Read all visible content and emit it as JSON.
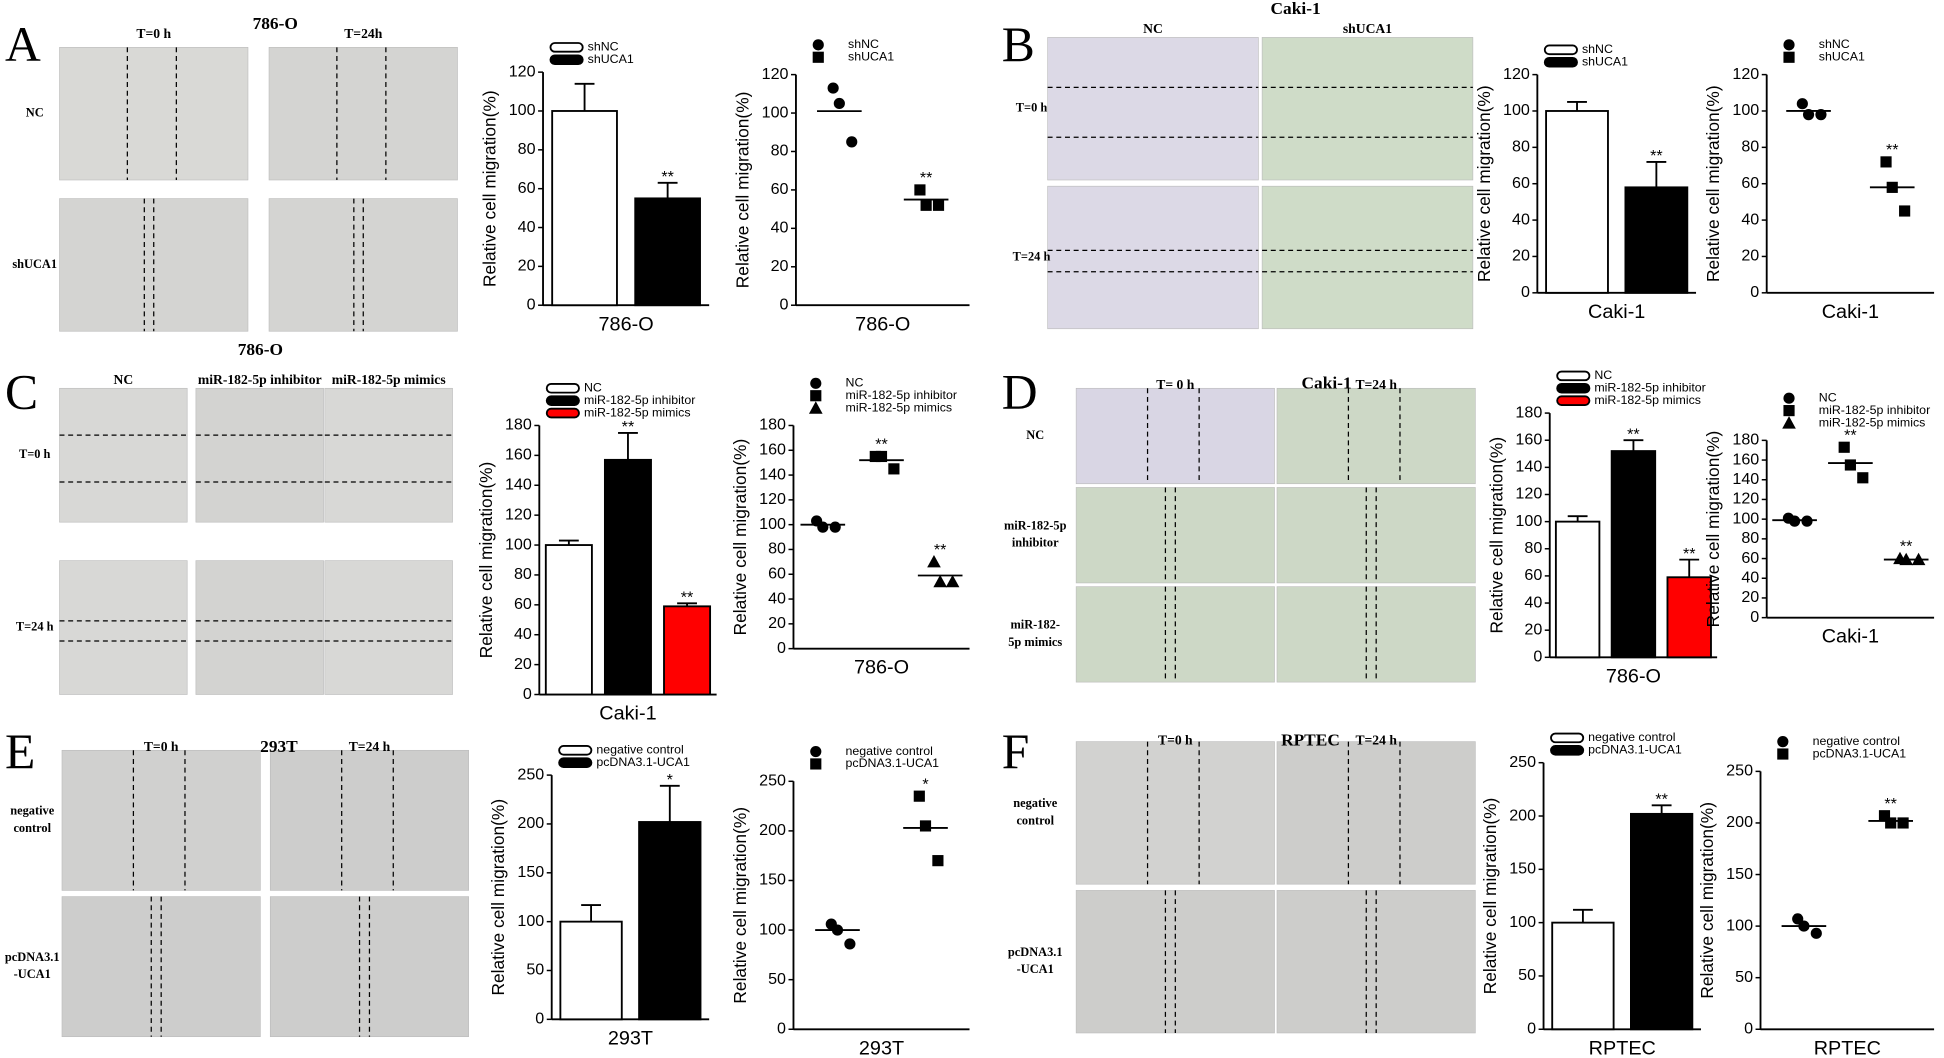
{
  "panels": [
    {
      "letter": "A",
      "title": "786-O",
      "column_labels": [
        "T=0 h",
        "T=24h"
      ],
      "row_labels": [
        [
          "NC"
        ],
        [
          "shUCA1"
        ]
      ]
    },
    {
      "letter": "B",
      "title": "Caki-1",
      "column_labels": [
        "NC",
        "shUCA1"
      ],
      "row_labels": [
        [
          "T=0 h"
        ],
        [
          "T=24 h"
        ]
      ]
    },
    {
      "letter": "C",
      "title": "786-O",
      "column_labels": [
        "NC",
        "miR-182-5p inhibitor",
        "miR-182-5p mimics"
      ],
      "row_labels": [
        [
          "T=0 h"
        ],
        [
          "T=24 h"
        ]
      ]
    },
    {
      "letter": "D",
      "title": "Caki-1",
      "column_labels": [
        "T= 0 h",
        "T=24 h"
      ],
      "row_labels": [
        [
          "NC"
        ],
        [
          "miR-182-5p",
          "inhibitor"
        ],
        [
          "miR-182-",
          "5p mimics"
        ]
      ]
    },
    {
      "letter": "E",
      "title": "293T",
      "column_labels": [
        "T=0 h",
        "T=24 h"
      ],
      "row_labels": [
        [
          "negative",
          "control"
        ],
        [
          "pcDNA3.1",
          "-UCA1"
        ]
      ]
    },
    {
      "letter": "F",
      "title": "RPTEC",
      "column_labels": [
        "T=0 h",
        "T=24 h"
      ],
      "row_labels": [
        [
          "negative",
          "control"
        ],
        [
          "pcDNA3.1",
          "-UCA1"
        ]
      ]
    }
  ],
  "chart_data": [
    {
      "type": "bar",
      "ylabel": "Relative cell migration(%)",
      "xlabel": "786-O",
      "ylim": [
        0,
        120
      ],
      "yticks": [
        0,
        20,
        40,
        60,
        80,
        100,
        120
      ],
      "series": [
        {
          "name": "shNC",
          "color": "#ffffff",
          "values": [
            100
          ],
          "errors": [
            14
          ]
        },
        {
          "name": "shUCA1",
          "color": "#000000",
          "values": [
            55
          ],
          "errors": [
            8
          ],
          "annotation": "**"
        }
      ]
    },
    {
      "type": "dot",
      "ylabel": "Relative cell migration(%)",
      "xlabel": "786-O",
      "ylim": [
        0,
        120
      ],
      "yticks": [
        0,
        20,
        40,
        60,
        80,
        100,
        120
      ],
      "series": [
        {
          "name": "shNC",
          "marker": "circle",
          "values": [
            113,
            105,
            85
          ],
          "mean": 101
        },
        {
          "name": "shUCA1",
          "marker": "square",
          "values": [
            60,
            52,
            52
          ],
          "mean": 55,
          "annotation": "**"
        }
      ]
    },
    {
      "type": "bar",
      "ylabel": "Relative cell migration(%)",
      "xlabel": "Caki-1",
      "ylim": [
        0,
        120
      ],
      "yticks": [
        0,
        20,
        40,
        60,
        80,
        100,
        120
      ],
      "series": [
        {
          "name": "shNC",
          "color": "#ffffff",
          "values": [
            100
          ],
          "errors": [
            5
          ]
        },
        {
          "name": "shUCA1",
          "color": "#000000",
          "values": [
            58
          ],
          "errors": [
            14
          ],
          "annotation": "**"
        }
      ]
    },
    {
      "type": "dot",
      "ylabel": "Relative cell migration(%)",
      "xlabel": "Caki-1",
      "ylim": [
        0,
        120
      ],
      "yticks": [
        0,
        20,
        40,
        60,
        80,
        100,
        120
      ],
      "series": [
        {
          "name": "shNC",
          "marker": "circle",
          "values": [
            104,
            98,
            98
          ],
          "mean": 100
        },
        {
          "name": "shUCA1",
          "marker": "square",
          "values": [
            72,
            58,
            45
          ],
          "mean": 58,
          "annotation": "**"
        }
      ]
    },
    {
      "type": "bar",
      "ylabel": "Relative cell migration(%)",
      "xlabel": "Caki-1",
      "ylim": [
        0,
        180
      ],
      "yticks": [
        0,
        20,
        40,
        60,
        80,
        100,
        120,
        140,
        160,
        180
      ],
      "series": [
        {
          "name": "NC",
          "color": "#ffffff",
          "values": [
            100
          ],
          "errors": [
            3
          ]
        },
        {
          "name": "miR-182-5p inhibitor",
          "color": "#000000",
          "values": [
            157
          ],
          "errors": [
            18
          ],
          "annotation": "**"
        },
        {
          "name": "miR-182-5p mimics",
          "color": "#ff0000",
          "values": [
            59
          ],
          "errors": [
            2
          ],
          "annotation": "**"
        }
      ]
    },
    {
      "type": "dot",
      "ylabel": "Relative cell migration(%)",
      "xlabel": "786-O",
      "ylim": [
        0,
        180
      ],
      "yticks": [
        0,
        20,
        40,
        60,
        80,
        100,
        120,
        140,
        160,
        180
      ],
      "series": [
        {
          "name": "NC",
          "marker": "circle",
          "values": [
            103,
            98,
            98
          ],
          "mean": 100
        },
        {
          "name": "miR-182-5p inhibitor",
          "marker": "square",
          "values": [
            155,
            155,
            145
          ],
          "mean": 152,
          "annotation": "**"
        },
        {
          "name": "miR-182-5p mimics",
          "marker": "triangle",
          "values": [
            70,
            54,
            54
          ],
          "mean": 59,
          "annotation": "**"
        }
      ]
    },
    {
      "type": "bar",
      "ylabel": "Relative cell migration(%)",
      "xlabel": "786-O",
      "ylim": [
        0,
        180
      ],
      "yticks": [
        0,
        20,
        40,
        60,
        80,
        100,
        120,
        140,
        160,
        180
      ],
      "series": [
        {
          "name": "NC",
          "color": "#ffffff",
          "values": [
            100
          ],
          "errors": [
            4
          ]
        },
        {
          "name": "miR-182-5p inhibitor",
          "color": "#000000",
          "values": [
            152
          ],
          "errors": [
            8
          ],
          "annotation": "**"
        },
        {
          "name": "miR-182-5p mimics",
          "color": "#ff0000",
          "values": [
            59
          ],
          "errors": [
            13
          ],
          "annotation": "**"
        }
      ]
    },
    {
      "type": "dot",
      "ylabel": "Relative cell migration(%)",
      "xlabel": "Caki-1",
      "ylim": [
        0,
        180
      ],
      "yticks": [
        0,
        20,
        40,
        60,
        80,
        100,
        120,
        140,
        160,
        180
      ],
      "series": [
        {
          "name": "NC",
          "marker": "circle",
          "values": [
            101,
            98,
            98
          ],
          "mean": 99
        },
        {
          "name": "miR-182-5p inhibitor",
          "marker": "square",
          "values": [
            173,
            155,
            142
          ],
          "mean": 157,
          "annotation": "**"
        },
        {
          "name": "miR-182-5p mimics",
          "marker": "triangle",
          "values": [
            60,
            59,
            59
          ],
          "mean": 59,
          "annotation": "**"
        }
      ]
    },
    {
      "type": "bar",
      "ylabel": "Relative cell migration(%)",
      "xlabel": "293T",
      "ylim": [
        0,
        250
      ],
      "yticks": [
        0,
        50,
        100,
        150,
        200,
        250
      ],
      "series": [
        {
          "name": "negative control",
          "color": "#ffffff",
          "values": [
            100
          ],
          "errors": [
            17
          ]
        },
        {
          "name": "pcDNA3.1-UCA1",
          "color": "#000000",
          "values": [
            202
          ],
          "errors": [
            37
          ],
          "annotation": "*"
        }
      ]
    },
    {
      "type": "dot",
      "ylabel": "Relative cell migration(%)",
      "xlabel": "293T",
      "ylim": [
        0,
        250
      ],
      "yticks": [
        0,
        50,
        100,
        150,
        200,
        250
      ],
      "series": [
        {
          "name": "negative control",
          "marker": "circle",
          "values": [
            106,
            100,
            86
          ],
          "mean": 100
        },
        {
          "name": "pcDNA3.1-UCA1",
          "marker": "square",
          "values": [
            235,
            205,
            170
          ],
          "mean": 203,
          "annotation": "*"
        }
      ]
    },
    {
      "type": "bar",
      "ylabel": "Relative cell migration(%)",
      "xlabel": "RPTEC",
      "ylim": [
        0,
        250
      ],
      "yticks": [
        0,
        50,
        100,
        150,
        200,
        250
      ],
      "series": [
        {
          "name": "negative control",
          "color": "#ffffff",
          "values": [
            100
          ],
          "errors": [
            12
          ]
        },
        {
          "name": "pcDNA3.1-UCA1",
          "color": "#000000",
          "values": [
            202
          ],
          "errors": [
            8
          ],
          "annotation": "**"
        }
      ]
    },
    {
      "type": "dot",
      "ylabel": "Relative cell migration(%)",
      "xlabel": "RPTEC",
      "ylim": [
        0,
        250
      ],
      "yticks": [
        0,
        50,
        100,
        150,
        200,
        250
      ],
      "series": [
        {
          "name": "negative control",
          "marker": "circle",
          "values": [
            107,
            100,
            93
          ],
          "mean": 100
        },
        {
          "name": "pcDNA3.1-UCA1",
          "marker": "square",
          "values": [
            207,
            200,
            200
          ],
          "mean": 202,
          "annotation": "**"
        }
      ]
    }
  ]
}
